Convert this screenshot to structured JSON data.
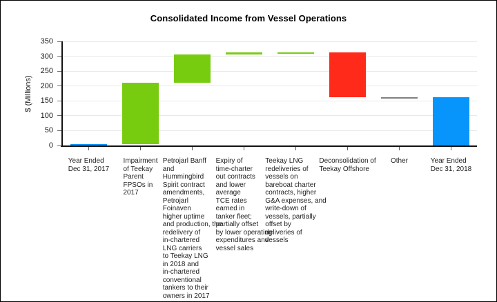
{
  "chart_data": {
    "type": "bar",
    "subtype": "waterfall",
    "title": "Consolidated Income from Vessel Operations",
    "ylabel": "$ (Millions)",
    "xlabel": "",
    "ylim": [
      0,
      350
    ],
    "ytick_step": 50,
    "ytick_labels": [
      "0",
      "50",
      "100",
      "150",
      "200",
      "250",
      "300",
      "350"
    ],
    "grid": "horizontal",
    "legend": false,
    "axis_color": "#111111",
    "gridline_color": "#E9E9E9",
    "tick_color": "#5A5A5A",
    "colors": {
      "total": "#0895FB",
      "increase": "#78CC10",
      "decrease": "#FF2A1A",
      "neutral": "#7F7F7F"
    },
    "bars": [
      {
        "label": "Year Ended Dec 31, 2017",
        "label_lines": [
          "Year Ended",
          "Dec 31, 2017"
        ],
        "from": 0,
        "to": 5,
        "role": "total"
      },
      {
        "label": "Impairment of Teekay Parent FPSOs in 2017",
        "label_lines": [
          "Impairment",
          "of Teekay",
          "Parent",
          "FPSOs in",
          "2017"
        ],
        "from": 5,
        "to": 210,
        "role": "increase"
      },
      {
        "label": "Petrojarl Banff and Hummingbird Spirit contract amendments, Petrojarl Foinaven higher uptime and production, the redelivery of in-chartered LNG carriers to Teekay LNG in 2018 and in-chartered conventional tankers to their owners in 2017",
        "label_lines": [
          "Petrojarl Banff",
          "and",
          "Hummingbird",
          "Spirit contract",
          "amendments,",
          "Petrojarl",
          "Foinaven",
          "higher uptime",
          "and production, the",
          "redelivery of",
          "in-chartered",
          "LNG carriers",
          "to Teekay LNG",
          "in 2018 and",
          "in-chartered",
          "conventional",
          "tankers to their",
          "owners in 2017"
        ],
        "from": 210,
        "to": 305,
        "role": "increase"
      },
      {
        "label": "Expiry of time-charter out contracts and lower average TCE rates earned in tanker fleet; partially offset by lower operating expenditures and vessel sales",
        "label_lines": [
          "Expiry of",
          "time-charter",
          "out contracts",
          "and lower",
          "average",
          "TCE rates",
          "earned in",
          "tanker fleet;",
          "partially offset",
          "by lower operating",
          "expenditures and",
          "vessel sales"
        ],
        "from": 305,
        "to": 312,
        "role": "increase"
      },
      {
        "label": "Teekay LNG redeliveries of vessels on bareboat charter contracts, higher G&A expenses, and write-down of vessels, partially offset by deliveries of vessels",
        "label_lines": [
          "Teekay LNG",
          "redeliveries of",
          "vessels on",
          "bareboat charter",
          "contracts, higher",
          "G&A expenses, and",
          "write-down of",
          "vessels, partially",
          "offset by",
          "deliveries of",
          "vessels"
        ],
        "from": 312,
        "to": 313,
        "role": "increase"
      },
      {
        "label": "Deconsolidation of Teekay Offshore",
        "label_lines": [
          "Deconsolidation of",
          "Teekay Offshore"
        ],
        "from": 313,
        "to": 163,
        "role": "decrease"
      },
      {
        "label": "Other",
        "label_lines": [
          "Other"
        ],
        "from": 163,
        "to": 163,
        "role": "neutral"
      },
      {
        "label": "Year Ended Dec 31, 2018",
        "label_lines": [
          "Year Ended",
          "Dec 31, 2018"
        ],
        "from": 0,
        "to": 163,
        "role": "total"
      }
    ]
  }
}
